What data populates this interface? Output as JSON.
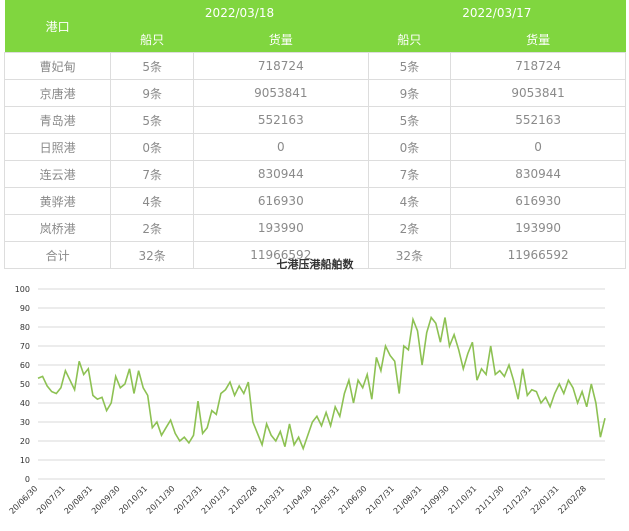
{
  "table": {
    "header": {
      "port": "港口",
      "date1": "2022/03/18",
      "date2": "2022/03/17",
      "sub": [
        "船只",
        "货量",
        "船只",
        "货量"
      ]
    },
    "rows": [
      [
        "曹妃甸",
        "5条",
        "718724",
        "5条",
        "718724"
      ],
      [
        "京唐港",
        "9条",
        "9053841",
        "9条",
        "9053841"
      ],
      [
        "青岛港",
        "5条",
        "552163",
        "5条",
        "552163"
      ],
      [
        "日照港",
        "0条",
        "0",
        "0条",
        "0"
      ],
      [
        "连云港",
        "7条",
        "830944",
        "7条",
        "830944"
      ],
      [
        "黄骅港",
        "4条",
        "616930",
        "4条",
        "616930"
      ],
      [
        "岚桥港",
        "2条",
        "193990",
        "2条",
        "193990"
      ],
      [
        "合计",
        "32条",
        "11966592",
        "32条",
        "11966592"
      ]
    ]
  },
  "chart_data": {
    "type": "line",
    "title": "七港压港船舶数",
    "color": "#8dc153",
    "grid": true,
    "ylim": [
      0,
      100
    ],
    "yticks": [
      0,
      10,
      20,
      30,
      40,
      50,
      60,
      70,
      80,
      90,
      100
    ],
    "categories": [
      "20/06/30",
      null,
      null,
      null,
      null,
      null,
      "20/07/31",
      null,
      null,
      null,
      null,
      null,
      "20/08/31",
      null,
      null,
      null,
      null,
      null,
      "20/09/30",
      null,
      null,
      null,
      null,
      null,
      "20/10/31",
      null,
      null,
      null,
      null,
      null,
      "20/11/30",
      null,
      null,
      null,
      null,
      null,
      "20/12/31",
      null,
      null,
      null,
      null,
      null,
      "21/01/31",
      null,
      null,
      null,
      null,
      null,
      "21/02/28",
      null,
      null,
      null,
      null,
      null,
      "21/03/31",
      null,
      null,
      null,
      null,
      null,
      "21/04/30",
      null,
      null,
      null,
      null,
      null,
      "21/05/31",
      null,
      null,
      null,
      null,
      null,
      "21/06/30",
      null,
      null,
      null,
      null,
      null,
      "21/07/31",
      null,
      null,
      null,
      null,
      null,
      "21/08/31",
      null,
      null,
      null,
      null,
      null,
      "21/09/30",
      null,
      null,
      null,
      null,
      null,
      "21/10/31",
      null,
      null,
      null,
      null,
      null,
      "21/11/30",
      null,
      null,
      null,
      null,
      null,
      "21/12/31",
      null,
      null,
      null,
      null,
      null,
      "22/01/31",
      null,
      null,
      null,
      null,
      null,
      "22/02/28",
      null,
      null,
      null,
      null
    ],
    "values": [
      53,
      54,
      49,
      46,
      45,
      48,
      57,
      52,
      47,
      62,
      55,
      58,
      44,
      42,
      43,
      36,
      40,
      54,
      48,
      50,
      58,
      45,
      57,
      48,
      44,
      27,
      30,
      23,
      27,
      31,
      24,
      20,
      22,
      19,
      23,
      41,
      24,
      27,
      36,
      34,
      45,
      47,
      51,
      44,
      49,
      45,
      51,
      30,
      24,
      18,
      29,
      23,
      20,
      25,
      17,
      29,
      18,
      22,
      16,
      23,
      30,
      33,
      28,
      35,
      28,
      38,
      33,
      45,
      52,
      40,
      52,
      48,
      55,
      42,
      64,
      57,
      70,
      65,
      62,
      45,
      70,
      68,
      84,
      78,
      60,
      77,
      85,
      82,
      72,
      85,
      70,
      76,
      68,
      58,
      66,
      72,
      52,
      58,
      55,
      70,
      55,
      57,
      54,
      60,
      52,
      42,
      58,
      44,
      47,
      46,
      40,
      43,
      38,
      45,
      50,
      45,
      52,
      48,
      40,
      46,
      38,
      50,
      40,
      22,
      32
    ]
  }
}
